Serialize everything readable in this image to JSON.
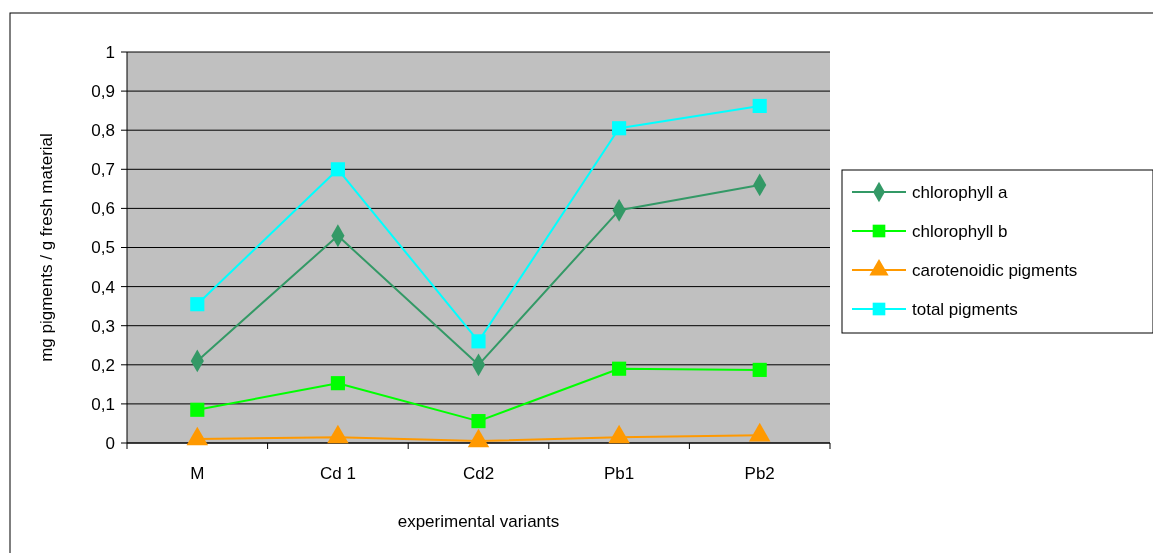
{
  "chart_data": {
    "type": "line",
    "xlabel": "experimental variants",
    "ylabel": "mg pigments / g fresh material",
    "categories": [
      "M",
      "Cd 1",
      "Cd2",
      "Pb1",
      "Pb2"
    ],
    "series": [
      {
        "name": "chlorophyll a",
        "color": "#339966",
        "marker": "diamond",
        "values": [
          0.21,
          0.53,
          0.2,
          0.595,
          0.66
        ]
      },
      {
        "name": "chlorophyll b",
        "color": "#00ff00",
        "marker": "square",
        "values": [
          0.085,
          0.153,
          0.056,
          0.19,
          0.187
        ]
      },
      {
        "name": "carotenoidic pigments",
        "color": "#ff9900",
        "marker": "triangle",
        "values": [
          0.01,
          0.015,
          0.005,
          0.015,
          0.02
        ]
      },
      {
        "name": "total pigments",
        "color": "#00ffff",
        "marker": "square",
        "values": [
          0.355,
          0.7,
          0.26,
          0.805,
          0.862
        ]
      }
    ],
    "ylim": [
      0,
      1
    ],
    "yticks": [
      0,
      {
        "value": 0.1,
        "label": "0,1"
      },
      {
        "value": 0.2,
        "label": "0,2"
      },
      {
        "value": 0.3,
        "label": "0,3"
      },
      {
        "value": 0.4,
        "label": "0,4"
      },
      {
        "value": 0.5,
        "label": "0,5"
      },
      {
        "value": 0.6,
        "label": "0,6"
      },
      {
        "value": 0.7,
        "label": "0,7"
      },
      {
        "value": 0.8,
        "label": "0,8"
      },
      {
        "value": 0.9,
        "label": "0,9"
      },
      1
    ],
    "grid": "y",
    "legend": "right",
    "line_style": "solid"
  }
}
